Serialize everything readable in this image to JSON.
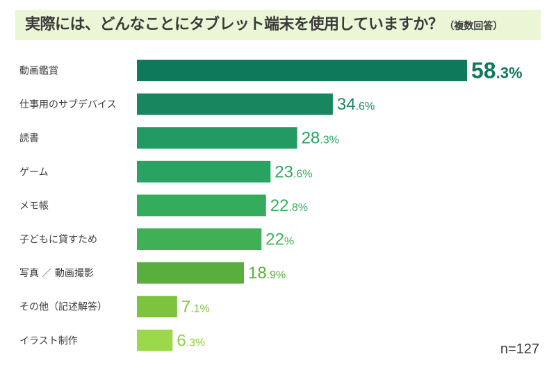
{
  "title": "実際には、どんなことにタブレット端末を使用していますか？",
  "subtitle": "（複数回答）",
  "note": "n=127",
  "chart_data": {
    "type": "bar",
    "orientation": "horizontal",
    "categories": [
      "動画鑑賞",
      "仕事用のサブデバイス",
      "読書",
      "ゲーム",
      "メモ帳",
      "子どもに貸すため",
      "写真 ／ 動画撮影",
      "その他（記述解答）",
      "イラスト制作"
    ],
    "values": [
      58.3,
      34.6,
      28.3,
      23.6,
      22.8,
      22,
      18.9,
      7.1,
      6.3
    ],
    "value_labels": [
      {
        "int": "58",
        "dec": ".3%"
      },
      {
        "int": "34",
        "dec": ".6%"
      },
      {
        "int": "28",
        "dec": ".3%"
      },
      {
        "int": "23",
        "dec": ".6%"
      },
      {
        "int": "22",
        "dec": ".8%"
      },
      {
        "int": "22",
        "dec": "%"
      },
      {
        "int": "18",
        "dec": ".9%"
      },
      {
        "int": "7",
        "dec": ".1%"
      },
      {
        "int": "6",
        "dec": ".3%"
      }
    ],
    "xlim": [
      0,
      58.3
    ],
    "grid": false,
    "bar_colors": [
      "#0f7a5b",
      "#18875f",
      "#229a62",
      "#2aa362",
      "#35ab5c",
      "#40b057",
      "#5aae3d",
      "#7cc440",
      "#9bd94a"
    ],
    "label_colors": [
      "#0f7a5b",
      "#1a8a5e",
      "#26a060",
      "#2eaa60",
      "#38b05a",
      "#42b457",
      "#5aae3d",
      "#7cc440",
      "#8ccf45"
    ]
  }
}
